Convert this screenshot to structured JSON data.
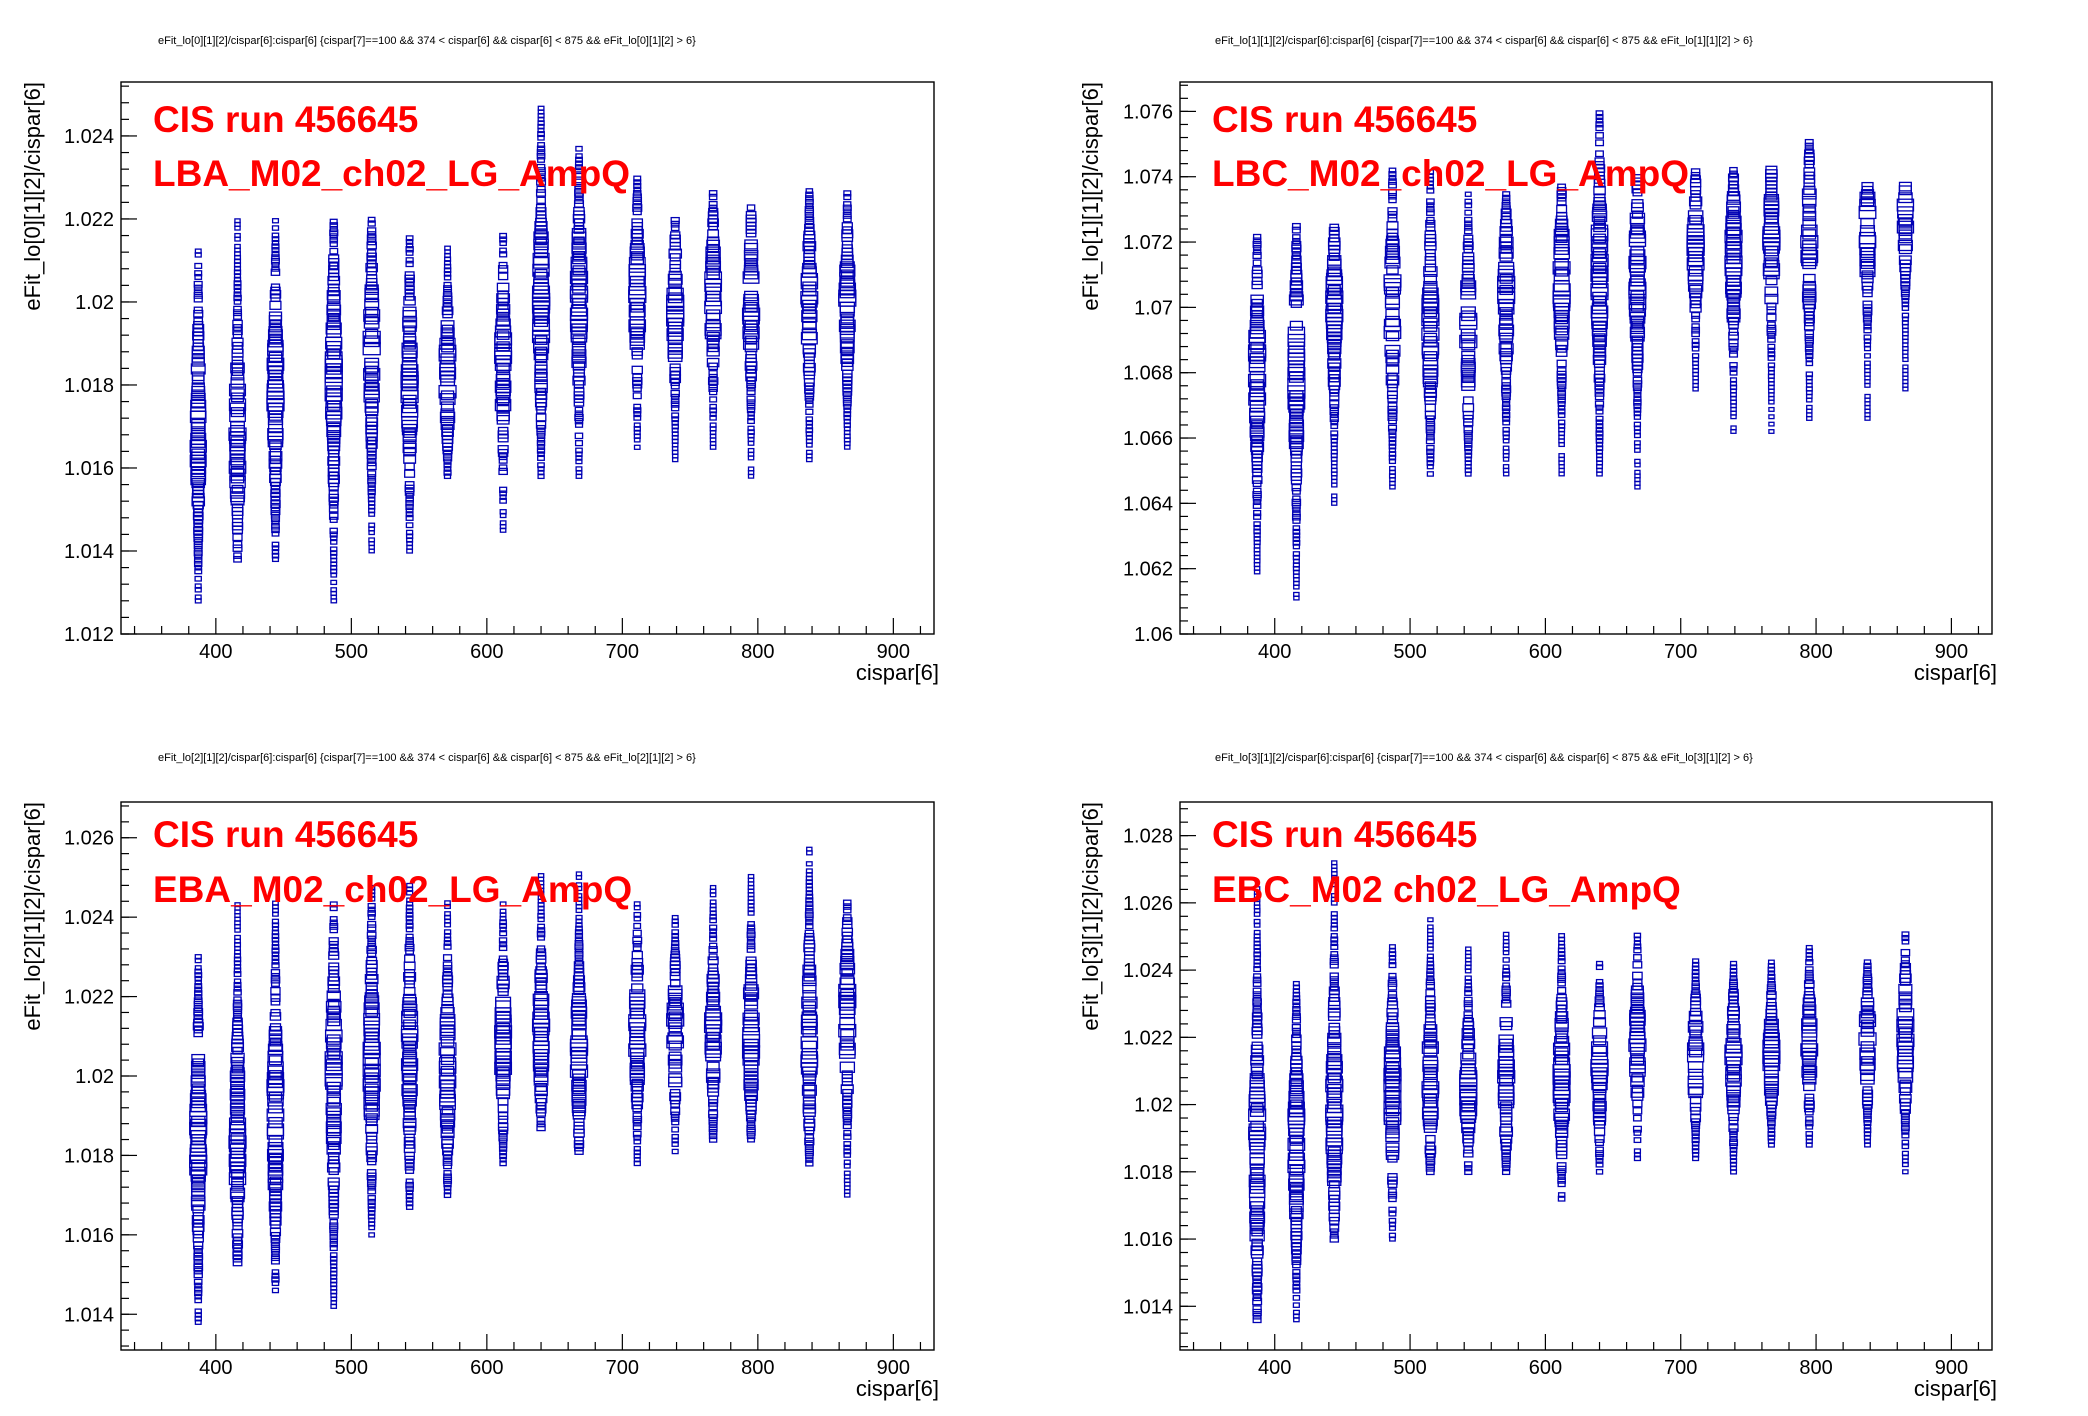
{
  "chart_data": [
    {
      "type": "scatter",
      "title": "eFit_lo[0][1][2]/cispar[6]:cispar[6] {cispar[7]==100 && 374 < cispar[6] && cispar[6] < 875 && eFit_lo[0][1][2] > 6}",
      "xlabel": "cispar[6]",
      "ylabel": "eFit_lo[0][1][2]/cispar[6]",
      "xlim": [
        330,
        930
      ],
      "ylim": [
        1.012,
        1.0253
      ],
      "xticks": [
        400,
        500,
        600,
        700,
        800,
        900
      ],
      "yticks": [
        1.012,
        1.014,
        1.016,
        1.018,
        1.02,
        1.022,
        1.024
      ],
      "ytick_labels": [
        "1.012",
        "1.014",
        "1.016",
        "1.018",
        "1.02",
        "1.022",
        "1.024"
      ],
      "annotations": [
        "CIS run 456645",
        "LBA_M02_ch02_LG_AmpQ"
      ],
      "x_columns": [
        387,
        416,
        444,
        487,
        515,
        543,
        571,
        612,
        640,
        668,
        711,
        739,
        767,
        795,
        838,
        866
      ],
      "columns": [
        {
          "x": 387,
          "ymin": 1.0128,
          "ymax": 1.0213,
          "center": 1.0172
        },
        {
          "x": 416,
          "ymin": 1.0138,
          "ymax": 1.022,
          "center": 1.0168
        },
        {
          "x": 444,
          "ymin": 1.0138,
          "ymax": 1.022,
          "center": 1.0178
        },
        {
          "x": 487,
          "ymin": 1.0128,
          "ymax": 1.022,
          "center": 1.0182
        },
        {
          "x": 515,
          "ymin": 1.014,
          "ymax": 1.022,
          "center": 1.0188
        },
        {
          "x": 543,
          "ymin": 1.014,
          "ymax": 1.0216,
          "center": 1.0181
        },
        {
          "x": 571,
          "ymin": 1.0158,
          "ymax": 1.0213,
          "center": 1.0182
        },
        {
          "x": 612,
          "ymin": 1.0145,
          "ymax": 1.0216,
          "center": 1.0185
        },
        {
          "x": 640,
          "ymin": 1.0158,
          "ymax": 1.0247,
          "center": 1.02
        },
        {
          "x": 668,
          "ymin": 1.0158,
          "ymax": 1.0237,
          "center": 1.02
        },
        {
          "x": 711,
          "ymin": 1.0165,
          "ymax": 1.023,
          "center": 1.0201
        },
        {
          "x": 739,
          "ymin": 1.0162,
          "ymax": 1.022,
          "center": 1.0198
        },
        {
          "x": 767,
          "ymin": 1.0165,
          "ymax": 1.0227,
          "center": 1.0201
        },
        {
          "x": 795,
          "ymin": 1.0158,
          "ymax": 1.0223,
          "center": 1.02
        },
        {
          "x": 838,
          "ymin": 1.0162,
          "ymax": 1.0227,
          "center": 1.0199
        },
        {
          "x": 866,
          "ymin": 1.0165,
          "ymax": 1.0227,
          "center": 1.02
        }
      ]
    },
    {
      "type": "scatter",
      "title": "eFit_lo[1][1][2]/cispar[6]:cispar[6] {cispar[7]==100 && 374 < cispar[6] && cispar[6] < 875 && eFit_lo[1][1][2] > 6}",
      "xlabel": "cispar[6]",
      "ylabel": "eFit_lo[1][1][2]/cispar[6]",
      "xlim": [
        330,
        930
      ],
      "ylim": [
        1.06,
        1.0769
      ],
      "xticks": [
        400,
        500,
        600,
        700,
        800,
        900
      ],
      "yticks": [
        1.06,
        1.062,
        1.064,
        1.066,
        1.068,
        1.07,
        1.072,
        1.074,
        1.076
      ],
      "ytick_labels": [
        "1.06",
        "1.062",
        "1.064",
        "1.066",
        "1.068",
        "1.07",
        "1.072",
        "1.074",
        "1.076"
      ],
      "annotations": [
        "CIS run 456645",
        "LBC_M02_ch02_LG_AmpQ"
      ],
      "x_columns": [
        387,
        416,
        444,
        487,
        515,
        543,
        571,
        612,
        640,
        668,
        711,
        739,
        767,
        795,
        838,
        866
      ],
      "columns": [
        {
          "x": 387,
          "ymin": 1.0619,
          "ymax": 1.0722,
          "center": 1.068
        },
        {
          "x": 416,
          "ymin": 1.0611,
          "ymax": 1.0725,
          "center": 1.068
        },
        {
          "x": 444,
          "ymin": 1.064,
          "ymax": 1.0725,
          "center": 1.0698
        },
        {
          "x": 487,
          "ymin": 1.0645,
          "ymax": 1.0742,
          "center": 1.07
        },
        {
          "x": 515,
          "ymin": 1.0649,
          "ymax": 1.0742,
          "center": 1.0695
        },
        {
          "x": 543,
          "ymin": 1.0649,
          "ymax": 1.0735,
          "center": 1.0693
        },
        {
          "x": 571,
          "ymin": 1.0649,
          "ymax": 1.0735,
          "center": 1.0703
        },
        {
          "x": 612,
          "ymin": 1.0649,
          "ymax": 1.0738,
          "center": 1.0708
        },
        {
          "x": 640,
          "ymin": 1.0649,
          "ymax": 1.076,
          "center": 1.071
        },
        {
          "x": 668,
          "ymin": 1.0645,
          "ymax": 1.074,
          "center": 1.071
        },
        {
          "x": 711,
          "ymin": 1.0675,
          "ymax": 1.0742,
          "center": 1.0718
        },
        {
          "x": 739,
          "ymin": 1.0662,
          "ymax": 1.0742,
          "center": 1.0715
        },
        {
          "x": 767,
          "ymin": 1.0662,
          "ymax": 1.0742,
          "center": 1.072
        },
        {
          "x": 795,
          "ymin": 1.0666,
          "ymax": 1.0751,
          "center": 1.072
        },
        {
          "x": 838,
          "ymin": 1.0666,
          "ymax": 1.0738,
          "center": 1.0723
        },
        {
          "x": 866,
          "ymin": 1.0675,
          "ymax": 1.0738,
          "center": 1.0728
        }
      ]
    },
    {
      "type": "scatter",
      "title": "eFit_lo[2][1][2]/cispar[6]:cispar[6] {cispar[7]==100 && 374 < cispar[6] && cispar[6] < 875 && eFit_lo[2][1][2] > 6}",
      "xlabel": "cispar[6]",
      "ylabel": "eFit_lo[2][1][2]/cispar[6]",
      "xlim": [
        330,
        930
      ],
      "ylim": [
        1.0131,
        1.0269
      ],
      "xticks": [
        400,
        500,
        600,
        700,
        800,
        900
      ],
      "yticks": [
        1.014,
        1.016,
        1.018,
        1.02,
        1.022,
        1.024,
        1.026
      ],
      "ytick_labels": [
        "1.014",
        "1.016",
        "1.018",
        "1.02",
        "1.022",
        "1.024",
        "1.026"
      ],
      "annotations": [
        "CIS run 456645",
        "EBA_M02_ch02_LG_AmpQ"
      ],
      "x_columns": [
        387,
        416,
        444,
        487,
        515,
        543,
        571,
        612,
        640,
        668,
        711,
        739,
        767,
        795,
        838,
        866
      ],
      "columns": [
        {
          "x": 387,
          "ymin": 1.0138,
          "ymax": 1.023,
          "center": 1.0184
        },
        {
          "x": 416,
          "ymin": 1.0153,
          "ymax": 1.0244,
          "center": 1.0185
        },
        {
          "x": 444,
          "ymin": 1.0146,
          "ymax": 1.0244,
          "center": 1.019
        },
        {
          "x": 487,
          "ymin": 1.0142,
          "ymax": 1.0244,
          "center": 1.02
        },
        {
          "x": 515,
          "ymin": 1.016,
          "ymax": 1.0248,
          "center": 1.0205
        },
        {
          "x": 543,
          "ymin": 1.0167,
          "ymax": 1.0248,
          "center": 1.0205
        },
        {
          "x": 571,
          "ymin": 1.017,
          "ymax": 1.0244,
          "center": 1.0202
        },
        {
          "x": 612,
          "ymin": 1.0178,
          "ymax": 1.0244,
          "center": 1.0208
        },
        {
          "x": 640,
          "ymin": 1.0187,
          "ymax": 1.0251,
          "center": 1.021
        },
        {
          "x": 668,
          "ymin": 1.0181,
          "ymax": 1.0251,
          "center": 1.0206
        },
        {
          "x": 711,
          "ymin": 1.0178,
          "ymax": 1.0244,
          "center": 1.0211
        },
        {
          "x": 739,
          "ymin": 1.0181,
          "ymax": 1.024,
          "center": 1.021
        },
        {
          "x": 767,
          "ymin": 1.0184,
          "ymax": 1.0248,
          "center": 1.021
        },
        {
          "x": 795,
          "ymin": 1.0184,
          "ymax": 1.0251,
          "center": 1.021
        },
        {
          "x": 838,
          "ymin": 1.0178,
          "ymax": 1.0258,
          "center": 1.021
        },
        {
          "x": 866,
          "ymin": 1.017,
          "ymax": 1.0244,
          "center": 1.0215
        }
      ]
    },
    {
      "type": "scatter",
      "title": "eFit_lo[3][1][2]/cispar[6]:cispar[6] {cispar[7]==100 && 374 < cispar[6] && cispar[6] < 875 && eFit_lo[3][1][2] > 6}",
      "xlabel": "cispar[6]",
      "ylabel": "eFit_lo[3][1][2]/cispar[6]",
      "xlim": [
        330,
        930
      ],
      "ylim": [
        1.0127,
        1.029
      ],
      "xticks": [
        400,
        500,
        600,
        700,
        800,
        900
      ],
      "yticks": [
        1.014,
        1.016,
        1.018,
        1.02,
        1.022,
        1.024,
        1.026,
        1.028
      ],
      "ytick_labels": [
        "1.014",
        "1.016",
        "1.018",
        "1.02",
        "1.022",
        "1.024",
        "1.026",
        "1.028"
      ],
      "annotations": [
        "CIS run 456645",
        "EBC_M02 ch02_LG_AmpQ"
      ],
      "x_columns": [
        387,
        416,
        444,
        487,
        515,
        543,
        571,
        612,
        640,
        668,
        711,
        739,
        767,
        795,
        838,
        866
      ],
      "columns": [
        {
          "x": 387,
          "ymin": 1.0136,
          "ymax": 1.0265,
          "center": 1.0185
        },
        {
          "x": 416,
          "ymin": 1.0136,
          "ymax": 1.0236,
          "center": 1.0188
        },
        {
          "x": 444,
          "ymin": 1.016,
          "ymax": 1.0272,
          "center": 1.02
        },
        {
          "x": 487,
          "ymin": 1.016,
          "ymax": 1.0247,
          "center": 1.0205
        },
        {
          "x": 515,
          "ymin": 1.018,
          "ymax": 1.0255,
          "center": 1.0208
        },
        {
          "x": 543,
          "ymin": 1.018,
          "ymax": 1.0247,
          "center": 1.0205
        },
        {
          "x": 571,
          "ymin": 1.018,
          "ymax": 1.0251,
          "center": 1.0208
        },
        {
          "x": 612,
          "ymin": 1.0172,
          "ymax": 1.0251,
          "center": 1.0208
        },
        {
          "x": 640,
          "ymin": 1.018,
          "ymax": 1.0243,
          "center": 1.021
        },
        {
          "x": 668,
          "ymin": 1.0184,
          "ymax": 1.0251,
          "center": 1.0218
        },
        {
          "x": 711,
          "ymin": 1.0184,
          "ymax": 1.0243,
          "center": 1.0213
        },
        {
          "x": 739,
          "ymin": 1.018,
          "ymax": 1.0243,
          "center": 1.0213
        },
        {
          "x": 767,
          "ymin": 1.0188,
          "ymax": 1.0243,
          "center": 1.0215
        },
        {
          "x": 795,
          "ymin": 1.0188,
          "ymax": 1.0247,
          "center": 1.0218
        },
        {
          "x": 838,
          "ymin": 1.0188,
          "ymax": 1.0243,
          "center": 1.0218
        },
        {
          "x": 866,
          "ymin": 1.018,
          "ymax": 1.0251,
          "center": 1.022
        }
      ]
    }
  ],
  "colors": {
    "marker": "#0000b4",
    "annotation": "#ff0000",
    "axis": "#000000",
    "background": "#ffffff"
  }
}
